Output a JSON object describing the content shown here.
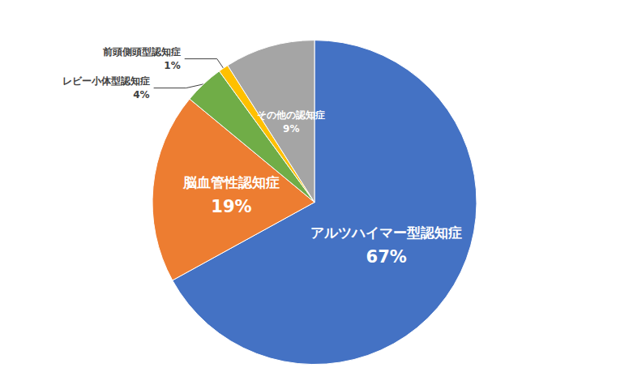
{
  "chart_data": {
    "type": "pie",
    "categories": [
      "アルツハイマー型認知症",
      "脳血管性認知症",
      "レビー小体型認知症",
      "前頭側頭型認知症",
      "その他の認知症"
    ],
    "values": [
      67,
      19,
      4,
      1,
      9
    ],
    "value_labels": [
      "67%",
      "19%",
      "4%",
      "1%",
      "9%"
    ],
    "colors": [
      "#4472c4",
      "#ed7d31",
      "#70ad47",
      "#ffc000",
      "#a5a5a5"
    ],
    "data_labels": true
  }
}
